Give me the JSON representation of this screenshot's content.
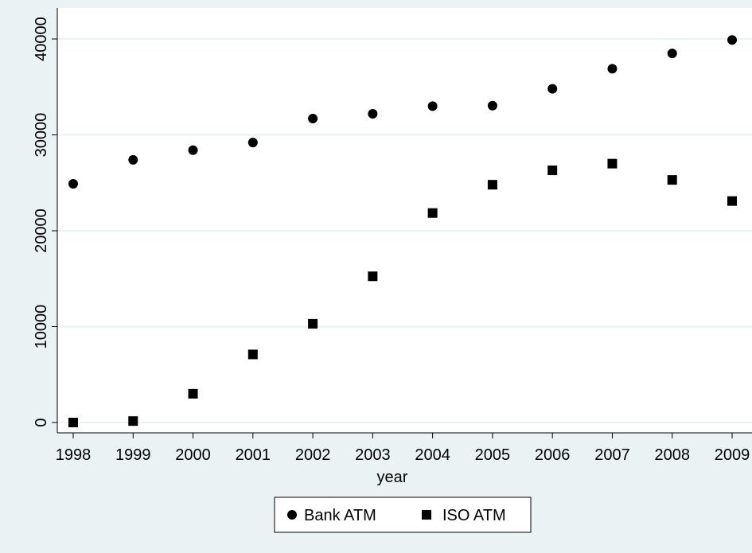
{
  "chart_data": {
    "type": "scatter",
    "title": "",
    "xlabel": "year",
    "ylabel": "",
    "x": [
      1998,
      1999,
      2000,
      2001,
      2002,
      2003,
      2004,
      2005,
      2006,
      2007,
      2008,
      2009
    ],
    "xticks": [
      "1998",
      "1999",
      "2000",
      "2001",
      "2002",
      "2003",
      "2004",
      "2005",
      "2006",
      "2007",
      "2008",
      "2009"
    ],
    "yticks": [
      "0",
      "10000",
      "20000",
      "30000",
      "40000"
    ],
    "ytick_values": [
      0,
      10000,
      20000,
      30000,
      40000
    ],
    "xlim": [
      1998,
      2009
    ],
    "ylim": [
      0,
      40000
    ],
    "grid": "horizontal",
    "legend_position": "bottom",
    "series": [
      {
        "name": "Bank ATM",
        "marker": "circle",
        "color": "#000000",
        "values": [
          24900,
          27400,
          28400,
          29200,
          31700,
          32200,
          33000,
          33050,
          34800,
          36900,
          38500,
          39900
        ]
      },
      {
        "name": "ISO ATM",
        "marker": "square",
        "color": "#000000",
        "values": [
          0,
          150,
          3000,
          7100,
          10300,
          15250,
          21850,
          24800,
          26300,
          27000,
          25300,
          23100
        ]
      }
    ]
  },
  "colors": {
    "outer_background": "#eaf2f3",
    "plot_background": "#ffffff",
    "gridline": "#eaf2f3",
    "marker": "#000000"
  }
}
